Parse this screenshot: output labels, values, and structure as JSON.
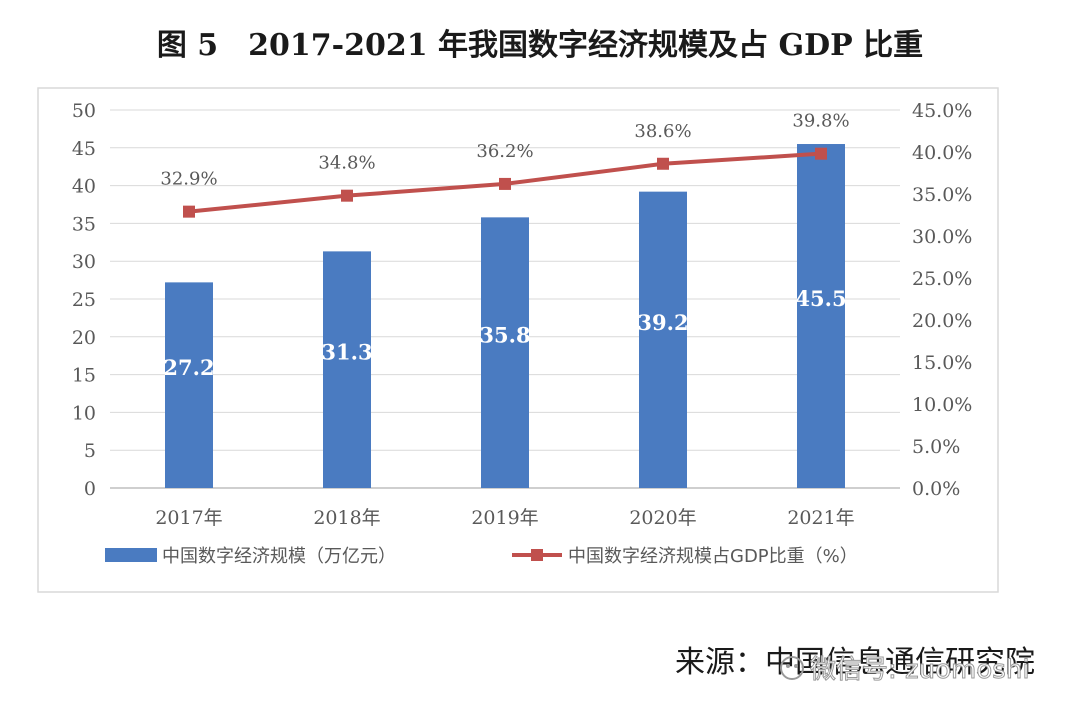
{
  "figure_title": "图 5　2017-2021 年我国数字经济规模及占 GDP 比重",
  "source_text": "来源：中国信息通信研究院",
  "watermark_text": "微信号: zuomoshi",
  "colors": {
    "bar": "#4a7bc1",
    "line": "#c0504d",
    "grid": "#d9d9d9",
    "frame": "#d9d9d9",
    "axis_text": "#595959",
    "bar_label": "#ffffff"
  },
  "chart_data": {
    "type": "bar",
    "categories": [
      "2017年",
      "2018年",
      "2019年",
      "2020年",
      "2021年"
    ],
    "series": [
      {
        "name": "中国数字经济规模（万亿元）",
        "kind": "bar",
        "axis": "left",
        "values": [
          27.2,
          31.3,
          35.8,
          39.2,
          45.5
        ],
        "value_labels": [
          "27.2",
          "31.3",
          "35.8",
          "39.2",
          "45.5"
        ]
      },
      {
        "name": "中国数字经济规模占GDP比重（%）",
        "kind": "line",
        "axis": "right",
        "values": [
          32.9,
          34.8,
          36.2,
          38.6,
          39.8
        ],
        "value_labels": [
          "32.9%",
          "34.8%",
          "36.2%",
          "38.6%",
          "39.8%"
        ]
      }
    ],
    "left_axis": {
      "ylim": [
        0,
        50
      ],
      "ticks": [
        "0",
        "5",
        "10",
        "15",
        "20",
        "25",
        "30",
        "35",
        "40",
        "45",
        "50"
      ]
    },
    "right_axis": {
      "ylim": [
        0,
        45
      ],
      "ticks": [
        "0.0%",
        "5.0%",
        "10.0%",
        "15.0%",
        "20.0%",
        "25.0%",
        "30.0%",
        "35.0%",
        "40.0%",
        "45.0%"
      ]
    },
    "grid": true,
    "legend_position": "bottom"
  }
}
